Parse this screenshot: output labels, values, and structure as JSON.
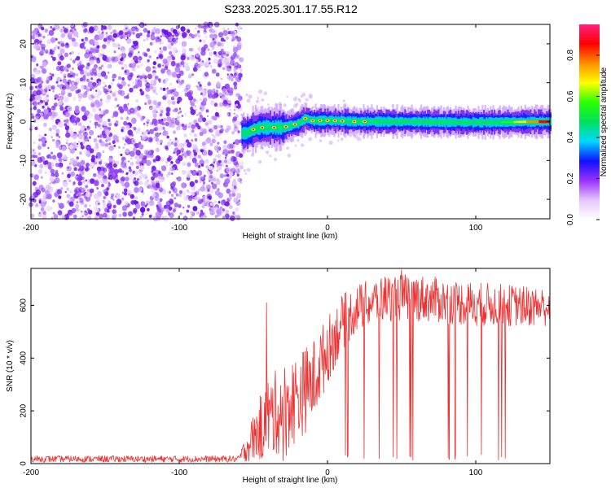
{
  "title": "S233.2025.301.17.55.R12",
  "chart_data": [
    {
      "type": "heatmap",
      "name": "spectrogram",
      "xlabel": "Height of straight line (km)",
      "ylabel": "Frequency (Hz)",
      "xlim": [
        -200,
        150
      ],
      "ylim": [
        -25,
        25
      ],
      "xticks": [
        -200,
        -100,
        0,
        100
      ],
      "yticks": [
        -20,
        -10,
        0,
        10,
        20
      ],
      "xtick_labels": [
        "-200",
        "-100",
        "0",
        "100"
      ],
      "ytick_labels": [
        "-20",
        "-10",
        "0",
        "10",
        "20"
      ],
      "noise_region_x": [
        -200,
        -58
      ],
      "signal_start_x": -58,
      "signal_band_hz": 0,
      "signal_trace": [
        {
          "x": -55,
          "y": -3
        },
        {
          "x": -50,
          "y": -2
        },
        {
          "x": -45,
          "y": -1.5
        },
        {
          "x": -40,
          "y": -1.5
        },
        {
          "x": -30,
          "y": -1.5
        },
        {
          "x": -20,
          "y": -0.5
        },
        {
          "x": -15,
          "y": 0.8
        },
        {
          "x": -10,
          "y": 0.2
        },
        {
          "x": 0,
          "y": 0.3
        },
        {
          "x": 20,
          "y": 0
        },
        {
          "x": 50,
          "y": 0
        },
        {
          "x": 100,
          "y": -0.2
        },
        {
          "x": 150,
          "y": 0
        }
      ],
      "colorbar": {
        "label": "Normalized spectral amplitude",
        "range": [
          0,
          0.95
        ],
        "ticks": [
          0,
          0.2,
          0.4,
          0.6,
          0.8
        ],
        "tick_labels": [
          "0.0",
          "0.2",
          "0.4",
          "0.6",
          "0.8"
        ],
        "colors": [
          "#ffffff",
          "#e4c6ff",
          "#9b30ff",
          "#1010ff",
          "#00d8ff",
          "#00e060",
          "#28ff00",
          "#ffff00",
          "#ff9000",
          "#ff0000",
          "#ff2080"
        ]
      }
    },
    {
      "type": "line",
      "name": "snr",
      "xlabel": "Height of straight line (km)",
      "ylabel": "SNR (10 * v/v)",
      "xlim": [
        -200,
        150
      ],
      "ylim": [
        0,
        740
      ],
      "xticks": [
        -200,
        -100,
        0,
        100
      ],
      "yticks": [
        0,
        200,
        400,
        600
      ],
      "xtick_labels": [
        "-200",
        "-100",
        "0",
        "100"
      ],
      "ytick_labels": [
        "0",
        "200",
        "400",
        "600"
      ],
      "color": "#ee3030",
      "envelope": [
        {
          "x": -200,
          "lo": 5,
          "hi": 30
        },
        {
          "x": -60,
          "lo": 5,
          "hi": 30
        },
        {
          "x": -48,
          "lo": 10,
          "hi": 220
        },
        {
          "x": -40,
          "lo": 20,
          "hi": 330
        },
        {
          "x": -30,
          "lo": 40,
          "hi": 380
        },
        {
          "x": -20,
          "lo": 80,
          "hi": 420
        },
        {
          "x": -10,
          "lo": 150,
          "hi": 470
        },
        {
          "x": 0,
          "lo": 300,
          "hi": 560
        },
        {
          "x": 10,
          "lo": 430,
          "hi": 640
        },
        {
          "x": 20,
          "lo": 500,
          "hi": 680
        },
        {
          "x": 40,
          "lo": 540,
          "hi": 720
        },
        {
          "x": 60,
          "lo": 540,
          "hi": 720
        },
        {
          "x": 80,
          "lo": 530,
          "hi": 700
        },
        {
          "x": 100,
          "lo": 520,
          "hi": 690
        },
        {
          "x": 120,
          "lo": 520,
          "hi": 680
        },
        {
          "x": 150,
          "lo": 520,
          "hi": 670
        }
      ],
      "spikes": {
        "x_from": -45,
        "x_to": 130,
        "min_value": 10
      },
      "peak_value": 735
    }
  ]
}
